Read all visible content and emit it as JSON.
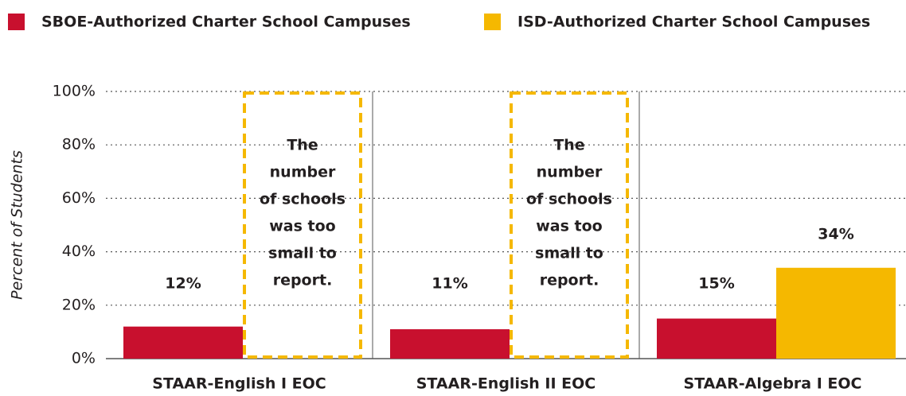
{
  "chart_data": {
    "type": "bar",
    "y_label": "Percent of Students",
    "categories": [
      "STAAR-English I EOC",
      "STAAR-English II EOC",
      "STAAR-Algebra I EOC"
    ],
    "series": [
      {
        "name": "SBOE-Authorized Charter School Campuses",
        "color": "#c8102e",
        "values": [
          12,
          11,
          15
        ],
        "value_labels": [
          "12%",
          "11%",
          "15%"
        ]
      },
      {
        "name": "ISD-Authorized Charter School Campuses",
        "color": "#f5b800",
        "values": [
          null,
          null,
          34
        ],
        "value_labels": [
          null,
          null,
          "34%"
        ]
      }
    ],
    "annotation": [
      "The",
      "number",
      "of schools",
      "was too",
      "small to",
      "report."
    ],
    "ylim": [
      0,
      100
    ],
    "yticks": [
      {
        "value": 0,
        "label": "0%"
      },
      {
        "value": 20,
        "label": "20%"
      },
      {
        "value": 40,
        "label": "40%"
      },
      {
        "value": 60,
        "label": "60%"
      },
      {
        "value": 80,
        "label": "80%"
      },
      {
        "value": 100,
        "label": "100%"
      }
    ],
    "grid": true,
    "legend": "top"
  }
}
